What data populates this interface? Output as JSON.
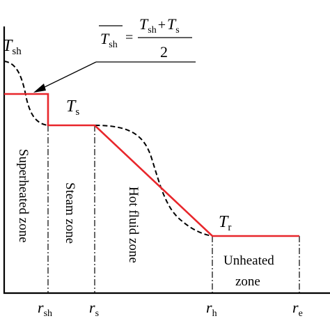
{
  "labels": {
    "T_sh": {
      "main": "T",
      "sub": "sh"
    },
    "T_s": {
      "main": "T",
      "sub": "s"
    },
    "T_r": {
      "main": "T",
      "sub": "r"
    }
  },
  "formula": {
    "lhs_main": "T",
    "lhs_sub": "sh",
    "eq": "=",
    "num_a_main": "T",
    "num_a_sub": "sh",
    "plus": "+",
    "num_b_main": "T",
    "num_b_sub": "s",
    "denominator": "2"
  },
  "zones": {
    "superheated": "Superheated zone",
    "steam": "Steam zone",
    "hot_fluid": "Hot fluid zone",
    "unheated_line1": "Unheated",
    "unheated_line2": "zone"
  },
  "ticks": {
    "r_sh": {
      "main": "r",
      "sub": "sh"
    },
    "r_s": {
      "main": "r",
      "sub": "s"
    },
    "r_h": {
      "main": "r",
      "sub": "h"
    },
    "r_e": {
      "main": "r",
      "sub": "e"
    }
  },
  "colors": {
    "profile": "#e8262b",
    "dashed": "#000000",
    "axis": "#000000"
  }
}
